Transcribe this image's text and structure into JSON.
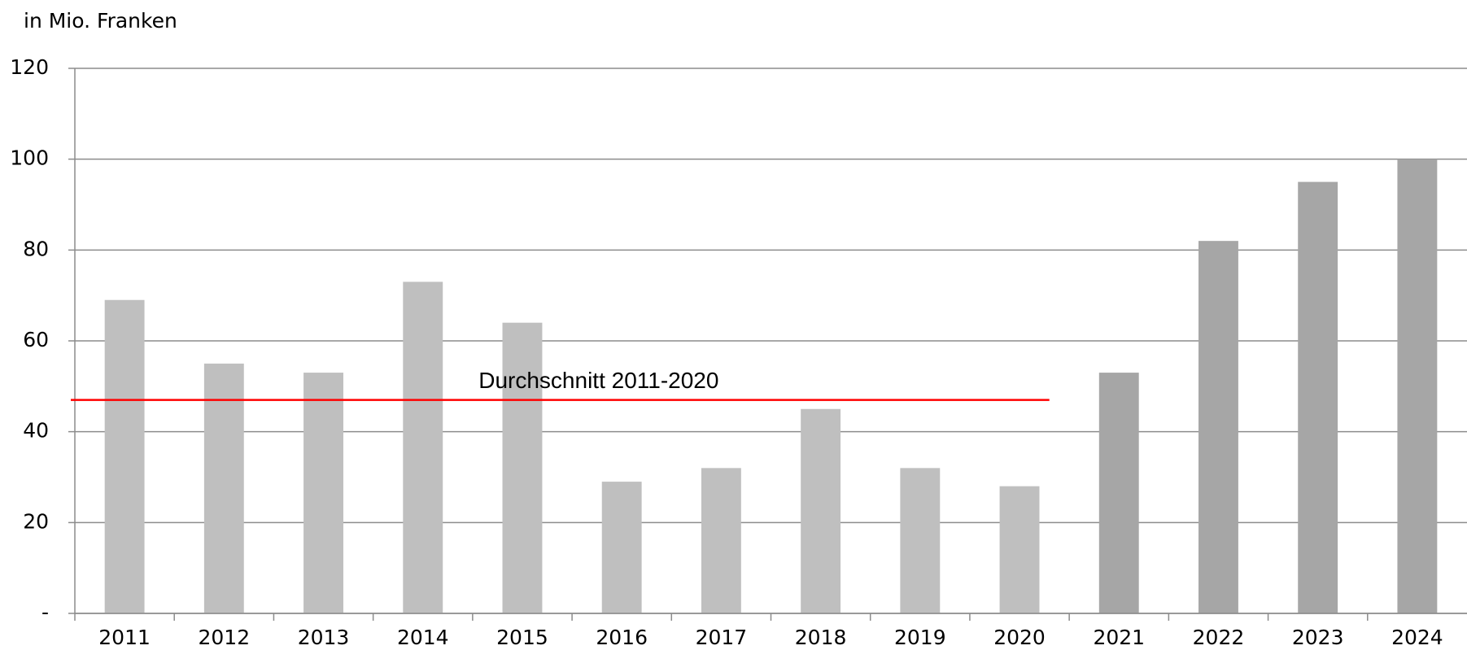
{
  "chart_data": {
    "type": "bar",
    "y_axis_label": "in Mio. Franken",
    "categories": [
      "2011",
      "2012",
      "2013",
      "2014",
      "2015",
      "2016",
      "2017",
      "2018",
      "2019",
      "2020",
      "2021",
      "2022",
      "2023",
      "2024"
    ],
    "values": [
      69,
      55,
      53,
      73,
      64,
      29,
      32,
      45,
      32,
      28,
      53,
      82,
      95,
      100
    ],
    "colors": [
      "#bfbfbf",
      "#bfbfbf",
      "#bfbfbf",
      "#bfbfbf",
      "#bfbfbf",
      "#bfbfbf",
      "#bfbfbf",
      "#bfbfbf",
      "#bfbfbf",
      "#bfbfbf",
      "#a6a6a6",
      "#a6a6a6",
      "#a6a6a6",
      "#a6a6a6"
    ],
    "average_line": {
      "label": "Durchschnitt 2011-2020",
      "value": 47,
      "color": "#ff0000"
    },
    "ylim": [
      0,
      120
    ],
    "yticks": [
      {
        "value": 0,
        "label": "-"
      },
      20,
      40,
      60,
      80,
      100,
      120
    ],
    "grid": true
  }
}
